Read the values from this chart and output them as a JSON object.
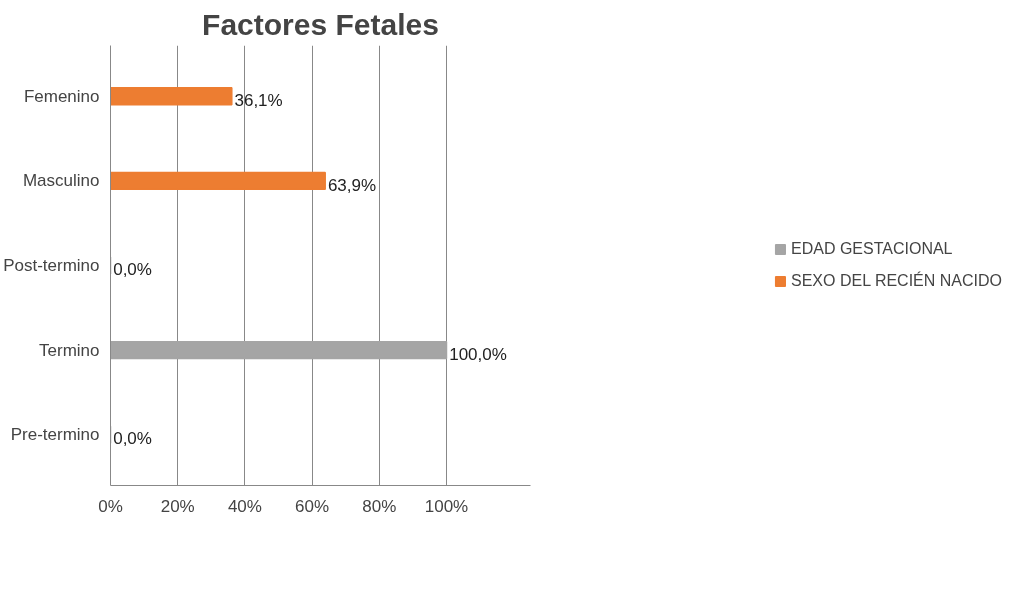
{
  "chart_data": {
    "type": "bar",
    "orientation": "horizontal",
    "title": "Factores Fetales",
    "categories": [
      "Femenino",
      "Masculino",
      "Post-termino",
      "Termino",
      "Pre-termino"
    ],
    "series": [
      {
        "name": "EDAD GESTACIONAL",
        "color": "#a5a5a5",
        "values": [
          null,
          null,
          0.0,
          100.0,
          0.0
        ],
        "value_labels": [
          null,
          null,
          "0,0%",
          "100,0%",
          "0,0%"
        ]
      },
      {
        "name": "SEXO DEL RECIÉN NACIDO",
        "color": "#ed7d31",
        "values": [
          36.1,
          63.9,
          null,
          null,
          null
        ],
        "value_labels": [
          "36,1%",
          "63,9%",
          null,
          null,
          null
        ]
      }
    ],
    "xlim": [
      0,
      125
    ],
    "xticks": [
      {
        "value": 0,
        "label": "0%"
      },
      {
        "value": 20,
        "label": "20%"
      },
      {
        "value": 40,
        "label": "40%"
      },
      {
        "value": 60,
        "label": "60%"
      },
      {
        "value": 80,
        "label": "80%"
      },
      {
        "value": 100,
        "label": "100%"
      }
    ],
    "grid": "x",
    "legend": "right"
  }
}
